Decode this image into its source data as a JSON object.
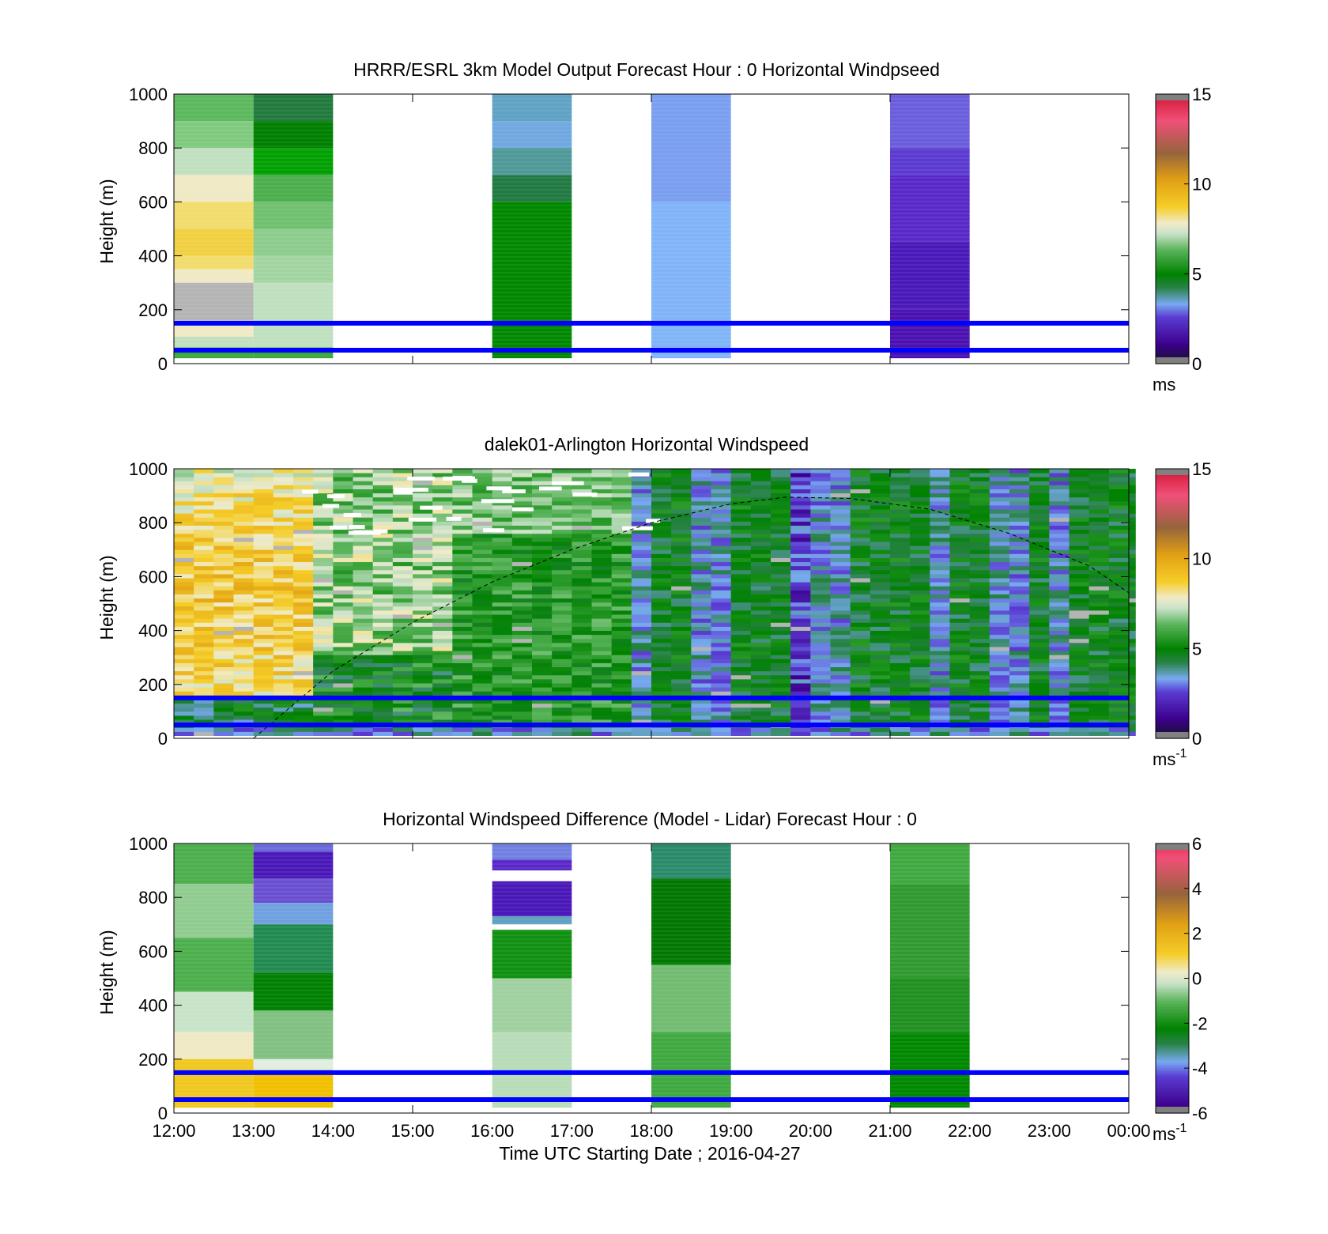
{
  "chart_data": [
    {
      "type": "heatmap",
      "title": "HRRR/ESRL 3km Model Output   Forecast Hour : 0 Horizontal Windpseed",
      "ylabel": "Height (m)",
      "xlabel": "",
      "ylim": [
        0,
        1000
      ],
      "y_ticks": [
        "0",
        "200",
        "400",
        "600",
        "800",
        "1000"
      ],
      "xlim": [
        "12:00",
        "00:00"
      ],
      "reference_lines_m": [
        150,
        50
      ],
      "colorbar": {
        "ticks": [
          "0",
          "5",
          "10",
          "15"
        ],
        "range": [
          0,
          15
        ],
        "unit": "ms"
      },
      "columns": [
        {
          "start": "12:00",
          "end": "13:00",
          "ymin": 20,
          "ymax": 1000,
          "cells": [
            [
              900,
              1000,
              "#5cb85c"
            ],
            [
              800,
              900,
              "#7fca7f"
            ],
            [
              700,
              800,
              "#c0e0c0"
            ],
            [
              600,
              700,
              "#efe9c4"
            ],
            [
              500,
              600,
              "#f2dc6c"
            ],
            [
              400,
              500,
              "#f0d040"
            ],
            [
              350,
              400,
              "#f2dc6c"
            ],
            [
              300,
              350,
              "#efe9c4"
            ],
            [
              160,
              300,
              "#b4b4b4"
            ],
            [
              100,
              160,
              "#efe9c4"
            ],
            [
              60,
              100,
              "#c0e0c0"
            ],
            [
              20,
              60,
              "#3aa83a"
            ]
          ]
        },
        {
          "start": "13:00",
          "end": "14:00",
          "ymin": 20,
          "ymax": 1000,
          "cells": [
            [
              900,
              1000,
              "#217a3e"
            ],
            [
              800,
              900,
              "#007f00"
            ],
            [
              700,
              800,
              "#00a000"
            ],
            [
              600,
              700,
              "#4caf4c"
            ],
            [
              500,
              600,
              "#70c070"
            ],
            [
              400,
              500,
              "#8ccc8c"
            ],
            [
              300,
              400,
              "#a2d4a2"
            ],
            [
              60,
              300,
              "#bfe0bf"
            ],
            [
              20,
              60,
              "#3aa83a"
            ]
          ]
        },
        {
          "start": "16:00",
          "end": "17:00",
          "ymin": 20,
          "ymax": 1000,
          "cells": [
            [
              900,
              1000,
              "#5fa2c4"
            ],
            [
              800,
              900,
              "#70a8e0"
            ],
            [
              700,
              800,
              "#4f9898"
            ],
            [
              600,
              700,
              "#217a42"
            ],
            [
              20,
              600,
              "#008800"
            ]
          ]
        },
        {
          "start": "18:00",
          "end": "19:00",
          "ymin": 20,
          "ymax": 1000,
          "cells": [
            [
              600,
              1000,
              "#7a9ef0"
            ],
            [
              20,
              600,
              "#80b4f8"
            ]
          ]
        },
        {
          "start": "21:00",
          "end": "22:00",
          "ymin": 20,
          "ymax": 1000,
          "cells": [
            [
              800,
              1000,
              "#6a5edc"
            ],
            [
              700,
              800,
              "#5a3ad0"
            ],
            [
              450,
              700,
              "#5a28c8"
            ],
            [
              200,
              450,
              "#4a18b8"
            ],
            [
              20,
              200,
              "#4a10b0"
            ]
          ]
        }
      ]
    },
    {
      "type": "heatmap",
      "title": "dalek01-Arlington  Horizontal Windspeed",
      "ylabel": "Height (m)",
      "xlabel": "",
      "ylim": [
        0,
        1000
      ],
      "y_ticks": [
        "0",
        "200",
        "400",
        "600",
        "800",
        "1000"
      ],
      "xlim": [
        "12:00",
        "00:00"
      ],
      "reference_lines_m": [
        150,
        50
      ],
      "colorbar": {
        "ticks": [
          "0",
          "5",
          "10",
          "15"
        ],
        "range": [
          0,
          15
        ],
        "unit": "ms",
        "unit_exponent": "-1"
      },
      "data_start": "12:00",
      "data_end": "23:50",
      "time_step_min": 15,
      "data_ymin_m": 10,
      "data_ymax_m": 1000,
      "dashed_curve_m": [
        [
          13.0,
          0
        ],
        [
          14.0,
          250
        ],
        [
          15.0,
          430
        ],
        [
          16.0,
          580
        ],
        [
          17.0,
          700
        ],
        [
          18.0,
          800
        ],
        [
          19.0,
          870
        ],
        [
          19.7,
          895
        ],
        [
          20.5,
          890
        ],
        [
          21.5,
          850
        ],
        [
          22.5,
          760
        ],
        [
          23.5,
          640
        ],
        [
          24.0,
          540
        ]
      ]
    },
    {
      "type": "heatmap",
      "title": "Horizontal Windspeed Difference (Model - Lidar) Forecast Hour : 0",
      "ylabel": "Height (m)",
      "xlabel": "Time UTC  Starting Date ; 2016-04-27",
      "ylim": [
        0,
        1000
      ],
      "y_ticks": [
        "0",
        "200",
        "400",
        "600",
        "800",
        "1000"
      ],
      "x_ticks": [
        "12:00",
        "13:00",
        "14:00",
        "15:00",
        "16:00",
        "17:00",
        "18:00",
        "19:00",
        "20:00",
        "21:00",
        "22:00",
        "23:00",
        "00:00"
      ],
      "reference_lines_m": [
        150,
        50
      ],
      "colorbar": {
        "ticks": [
          "-6",
          "-4",
          "-2",
          "0",
          "2",
          "4",
          "6"
        ],
        "range": [
          -6,
          6
        ],
        "unit": "ms",
        "unit_exponent": "-1"
      },
      "columns": [
        {
          "start": "12:00",
          "end": "13:00",
          "ymin": 20,
          "ymax": 1000,
          "cells": [
            [
              850,
              1000,
              "#4caf4c"
            ],
            [
              650,
              850,
              "#90cc90"
            ],
            [
              450,
              650,
              "#4caf4c"
            ],
            [
              300,
              450,
              "#c8e4c8"
            ],
            [
              200,
              300,
              "#efe9c4"
            ],
            [
              20,
              200,
              "#f0c820"
            ]
          ]
        },
        {
          "start": "13:00",
          "end": "14:00",
          "ymin": 20,
          "ymax": 1000,
          "cells": [
            [
              970,
              1000,
              "#6a6adc"
            ],
            [
              870,
              970,
              "#4a18b8"
            ],
            [
              780,
              870,
              "#6a50d0"
            ],
            [
              700,
              780,
              "#70a0e0"
            ],
            [
              520,
              700,
              "#218a50"
            ],
            [
              380,
              520,
              "#008000"
            ],
            [
              200,
              380,
              "#80c080"
            ],
            [
              160,
              200,
              "#e0eee0"
            ],
            [
              20,
              160,
              "#f0c000"
            ]
          ]
        },
        {
          "start": "16:00",
          "end": "17:00",
          "ymin": 20,
          "ymax": 1000,
          "cells": [
            [
              940,
              1000,
              "#7080e0"
            ],
            [
              900,
              940,
              "#5a28c8"
            ],
            [
              730,
              860,
              "#4a18b8"
            ],
            [
              700,
              730,
              "#60a0c0"
            ],
            [
              500,
              680,
              "#109010"
            ],
            [
              300,
              500,
              "#a0d0a0"
            ],
            [
              20,
              300,
              "#b8dcb8"
            ]
          ]
        },
        {
          "start": "18:00",
          "end": "19:00",
          "ymin": 20,
          "ymax": 1000,
          "cells": [
            [
              870,
              1000,
              "#2a8a6a"
            ],
            [
              550,
              870,
              "#007800"
            ],
            [
              300,
              550,
              "#70bc70"
            ],
            [
              20,
              300,
              "#40a840"
            ]
          ]
        },
        {
          "start": "21:00",
          "end": "22:00",
          "ymin": 20,
          "ymax": 1000,
          "cells": [
            [
              850,
              1000,
              "#40a840"
            ],
            [
              500,
              850,
              "#309a30"
            ],
            [
              300,
              500,
              "#209020"
            ],
            [
              20,
              300,
              "#008800"
            ]
          ]
        }
      ]
    }
  ]
}
